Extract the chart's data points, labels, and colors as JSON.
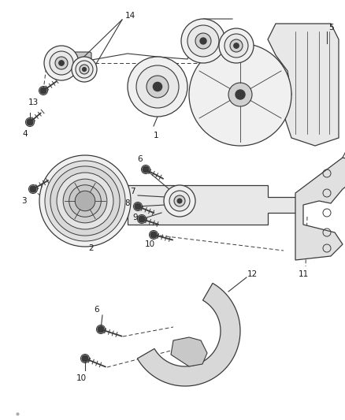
{
  "bg_color": "#ffffff",
  "line_color": "#3a3a3a",
  "label_color": "#1a1a1a",
  "fig_width": 4.38,
  "fig_height": 5.33,
  "dpi": 100
}
